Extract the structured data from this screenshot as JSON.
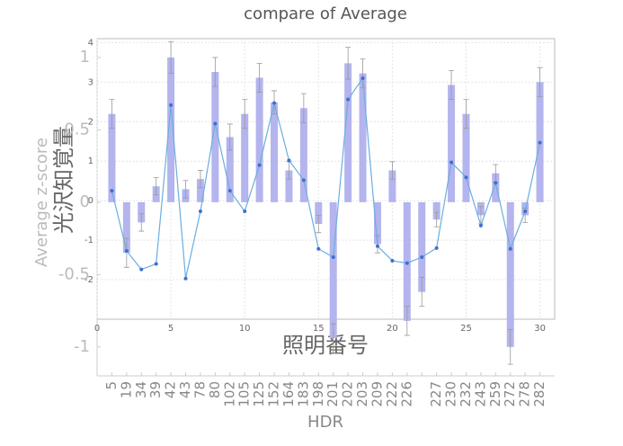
{
  "chart_data": [
    {
      "type": "bar",
      "title": "compare of Average",
      "xlabel": "HDR",
      "ylabel": "Average z-score",
      "categories": [
        "5",
        "19",
        "34",
        "39",
        "42",
        "43",
        "78",
        "80",
        "102",
        "105",
        "125",
        "152",
        "164",
        "183",
        "198",
        "201",
        "202",
        "203",
        "209",
        "222",
        "226",
        null,
        "227",
        "230",
        "232",
        "243",
        "259",
        "272",
        "278",
        "282"
      ],
      "values": [
        0.61,
        -0.35,
        -0.14,
        0.11,
        1.0,
        0.09,
        0.16,
        0.9,
        0.45,
        0.61,
        0.86,
        0.69,
        0.22,
        0.65,
        -0.15,
        -0.94,
        0.96,
        0.89,
        -0.29,
        0.22,
        -0.82,
        -0.62,
        -0.12,
        0.81,
        0.61,
        -0.09,
        0.2,
        -1.0,
        -0.09,
        0.83
      ],
      "errors": [
        0.1,
        0.1,
        0.06,
        0.06,
        0.11,
        0.06,
        0.06,
        0.1,
        0.09,
        0.1,
        0.1,
        0.08,
        0.06,
        0.1,
        0.06,
        0.1,
        0.11,
        0.1,
        0.06,
        0.06,
        0.1,
        0.1,
        0.05,
        0.1,
        0.1,
        0.06,
        0.06,
        0.12,
        0.05,
        0.1
      ],
      "color": "#b4b4ee",
      "ylim": [
        -1.2,
        1.13
      ],
      "yticks": [
        -1,
        -0.5,
        0,
        0.5,
        1
      ]
    },
    {
      "type": "line",
      "xlabel": "照明番号",
      "ylabel": "光沢知覚量",
      "x": [
        1,
        2,
        3,
        4,
        5,
        6,
        7,
        8,
        9,
        10,
        11,
        12,
        13,
        14,
        15,
        16,
        17,
        18,
        19,
        20,
        21,
        22,
        23,
        24,
        25,
        26,
        27,
        28,
        29,
        30
      ],
      "values": [
        0.25,
        -1.27,
        -1.74,
        -1.6,
        2.42,
        -1.97,
        -0.27,
        1.95,
        0.25,
        -0.27,
        0.9,
        2.47,
        1.02,
        0.52,
        -1.22,
        -1.43,
        2.56,
        3.1,
        -1.15,
        -1.52,
        -1.58,
        -1.43,
        -1.2,
        0.97,
        0.59,
        -0.63,
        0.45,
        -1.22,
        -0.27,
        1.47
      ],
      "color": "#6aaee0",
      "marker_color": "#3f6fd0",
      "xlim": [
        0,
        31
      ],
      "ylim": [
        -3,
        4.1
      ],
      "xticks": [
        0,
        5,
        10,
        15,
        20,
        25,
        30
      ],
      "yticks": [
        -2,
        -1,
        0,
        1,
        2,
        3,
        4
      ],
      "grid": true
    }
  ]
}
